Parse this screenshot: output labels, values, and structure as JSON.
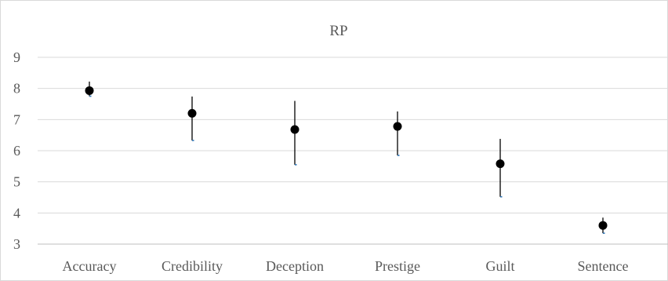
{
  "chart_data": {
    "type": "scatter",
    "title": "RP",
    "categories": [
      "Accuracy",
      "Credibility",
      "Deception",
      "Prestige",
      "Guilt",
      "Sentence"
    ],
    "values": [
      7.93,
      7.2,
      6.68,
      6.78,
      5.58,
      3.6
    ],
    "error_upper": [
      8.22,
      7.74,
      7.6,
      7.26,
      6.38,
      3.85
    ],
    "error_lower": [
      7.75,
      6.33,
      5.55,
      5.85,
      4.52,
      3.35
    ],
    "ylim": [
      3,
      9
    ],
    "yticks": [
      "3",
      "4",
      "5",
      "6",
      "7",
      "8",
      "9"
    ],
    "xlabel": "",
    "ylabel": "",
    "grid": true,
    "colors": {
      "marker": "#000000",
      "error_bar": "#000000",
      "cap": "#2e75b6",
      "grid": "#d9d9d9",
      "axis": "#bfbfbf",
      "text": "#595959"
    }
  }
}
